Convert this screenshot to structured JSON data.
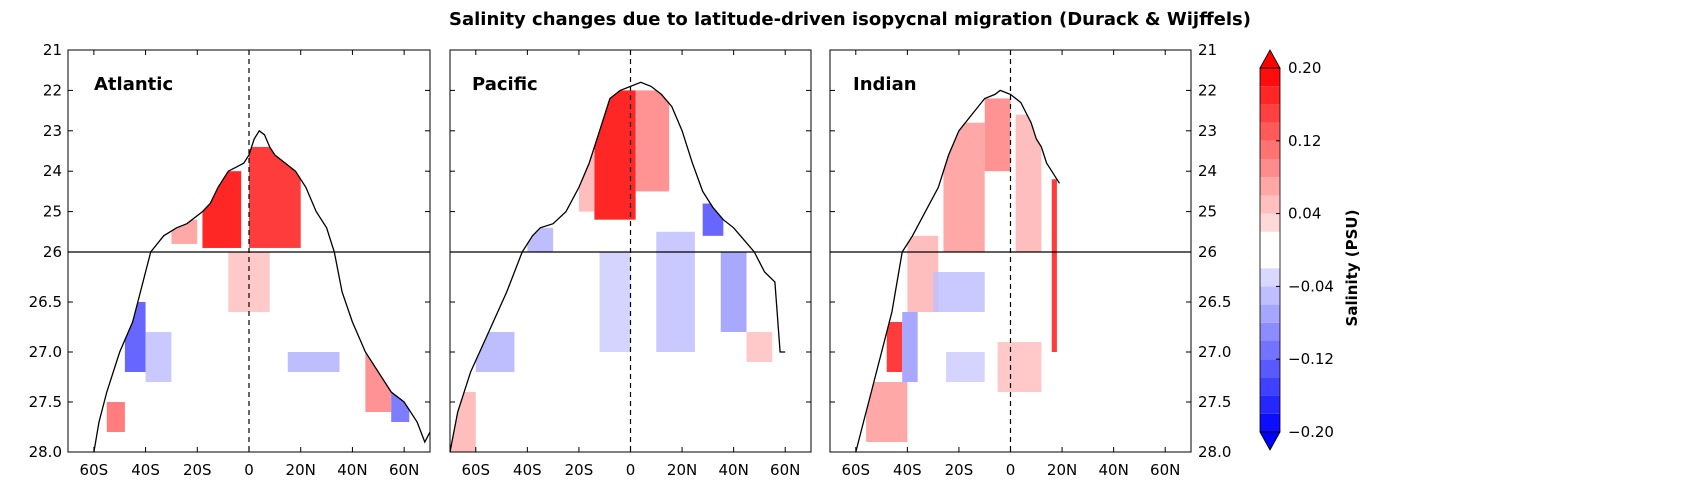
{
  "figure": {
    "title": "Salinity changes due to latitude-driven isopycnal migration (Durack & Wijffels)"
  },
  "chart_data": [
    {
      "type": "heatmap",
      "panel": "Atlantic",
      "x_tick_labels": [
        "60S",
        "40S",
        "20S",
        "0",
        "20N",
        "40N",
        "60N"
      ],
      "x_ticks": [
        -60,
        -40,
        -20,
        0,
        20,
        40,
        60
      ],
      "xlim": [
        -70,
        70
      ],
      "y_tick_labels": [
        "21",
        "22",
        "23",
        "24",
        "25",
        "26",
        "26.5",
        "27.0",
        "27.5",
        "28.0"
      ],
      "y_ticks": [
        21,
        22,
        23,
        24,
        25,
        26,
        26.5,
        27.0,
        27.5,
        28.0
      ],
      "y_axis_note": "density axis, stretched scale below 26",
      "reference_lines": {
        "vertical_dashed_at": 0,
        "horizontal_at": 26
      },
      "surface_outline": [
        [
          -60,
          28.0
        ],
        [
          -58,
          27.7
        ],
        [
          -55,
          27.4
        ],
        [
          -50,
          27.0
        ],
        [
          -45,
          26.7
        ],
        [
          -42,
          26.4
        ],
        [
          -38,
          26.0
        ],
        [
          -33,
          25.6
        ],
        [
          -28,
          25.4
        ],
        [
          -24,
          25.3
        ],
        [
          -18,
          25.0
        ],
        [
          -15,
          24.8
        ],
        [
          -12,
          24.4
        ],
        [
          -8,
          24.0
        ],
        [
          -5,
          23.9
        ],
        [
          -2,
          23.8
        ],
        [
          0,
          23.6
        ],
        [
          2,
          23.2
        ],
        [
          4,
          23.0
        ],
        [
          6,
          23.1
        ],
        [
          8,
          23.4
        ],
        [
          10,
          23.6
        ],
        [
          14,
          23.8
        ],
        [
          18,
          24.0
        ],
        [
          22,
          24.4
        ],
        [
          26,
          25.0
        ],
        [
          30,
          25.4
        ],
        [
          33,
          26.0
        ],
        [
          36,
          26.4
        ],
        [
          40,
          26.7
        ],
        [
          45,
          27.0
        ],
        [
          50,
          27.2
        ],
        [
          55,
          27.4
        ],
        [
          60,
          27.5
        ],
        [
          65,
          27.7
        ],
        [
          68,
          27.9
        ],
        [
          70,
          27.8
        ]
      ],
      "anomaly_patches": [
        {
          "x": [
            -18,
            -3
          ],
          "y": [
            24.0,
            25.9
          ],
          "value": 0.2
        },
        {
          "x": [
            0,
            20
          ],
          "y": [
            23.4,
            25.9
          ],
          "value": 0.18
        },
        {
          "x": [
            -30,
            -20
          ],
          "y": [
            25.2,
            25.8
          ],
          "value": 0.08
        },
        {
          "x": [
            -8,
            8
          ],
          "y": [
            26.0,
            26.6
          ],
          "value": 0.05
        },
        {
          "x": [
            -48,
            -40
          ],
          "y": [
            26.5,
            27.2
          ],
          "value": -0.14
        },
        {
          "x": [
            -40,
            -30
          ],
          "y": [
            26.8,
            27.3
          ],
          "value": -0.05
        },
        {
          "x": [
            15,
            35
          ],
          "y": [
            27.0,
            27.2
          ],
          "value": -0.06
        },
        {
          "x": [
            45,
            55
          ],
          "y": [
            27.0,
            27.6
          ],
          "value": 0.1
        },
        {
          "x": [
            55,
            62
          ],
          "y": [
            27.3,
            27.7
          ],
          "value": -0.12
        },
        {
          "x": [
            -55,
            -48
          ],
          "y": [
            27.5,
            27.8
          ],
          "value": 0.12
        }
      ]
    },
    {
      "type": "heatmap",
      "panel": "Pacific",
      "x_tick_labels": [
        "60S",
        "40S",
        "20S",
        "0",
        "20N",
        "40N",
        "60N"
      ],
      "x_ticks": [
        -60,
        -40,
        -20,
        0,
        20,
        40,
        60
      ],
      "xlim": [
        -70,
        70
      ],
      "y_tick_labels": [],
      "y_ticks": [
        21,
        22,
        23,
        24,
        25,
        26,
        26.5,
        27.0,
        27.5,
        28.0
      ],
      "reference_lines": {
        "vertical_dashed_at": 0,
        "horizontal_at": 26
      },
      "surface_outline": [
        [
          -70,
          28.0
        ],
        [
          -67,
          27.6
        ],
        [
          -62,
          27.2
        ],
        [
          -55,
          26.8
        ],
        [
          -48,
          26.4
        ],
        [
          -42,
          26.0
        ],
        [
          -38,
          25.6
        ],
        [
          -35,
          25.4
        ],
        [
          -30,
          25.3
        ],
        [
          -25,
          25.0
        ],
        [
          -20,
          24.4
        ],
        [
          -16,
          23.8
        ],
        [
          -12,
          23.0
        ],
        [
          -8,
          22.2
        ],
        [
          -4,
          22.0
        ],
        [
          0,
          21.9
        ],
        [
          4,
          21.8
        ],
        [
          8,
          21.9
        ],
        [
          12,
          22.1
        ],
        [
          16,
          22.4
        ],
        [
          20,
          23.0
        ],
        [
          24,
          23.8
        ],
        [
          28,
          24.5
        ],
        [
          32,
          24.9
        ],
        [
          36,
          25.2
        ],
        [
          40,
          25.4
        ],
        [
          44,
          25.7
        ],
        [
          48,
          26.0
        ],
        [
          52,
          26.2
        ],
        [
          56,
          26.3
        ],
        [
          58,
          27.0
        ],
        [
          60,
          27.0
        ]
      ],
      "anomaly_patches": [
        {
          "x": [
            -14,
            2
          ],
          "y": [
            22.0,
            25.2
          ],
          "value": 0.2
        },
        {
          "x": [
            2,
            15
          ],
          "y": [
            22.0,
            24.5
          ],
          "value": 0.1
        },
        {
          "x": [
            -20,
            -14
          ],
          "y": [
            23.5,
            25.0
          ],
          "value": 0.06
        },
        {
          "x": [
            28,
            36
          ],
          "y": [
            24.8,
            25.6
          ],
          "value": -0.14
        },
        {
          "x": [
            -40,
            -30
          ],
          "y": [
            25.4,
            26.0
          ],
          "value": -0.06
        },
        {
          "x": [
            -60,
            -45
          ],
          "y": [
            26.8,
            27.2
          ],
          "value": -0.06
        },
        {
          "x": [
            -12,
            0
          ],
          "y": [
            26.0,
            27.0
          ],
          "value": -0.04
        },
        {
          "x": [
            10,
            25
          ],
          "y": [
            25.5,
            27.0
          ],
          "value": -0.05
        },
        {
          "x": [
            35,
            45
          ],
          "y": [
            26.0,
            26.8
          ],
          "value": -0.08
        },
        {
          "x": [
            45,
            55
          ],
          "y": [
            26.8,
            27.1
          ],
          "value": 0.05
        },
        {
          "x": [
            -70,
            -60
          ],
          "y": [
            27.4,
            28.0
          ],
          "value": 0.06
        }
      ]
    },
    {
      "type": "heatmap",
      "panel": "Indian",
      "x_tick_labels": [
        "60S",
        "40S",
        "20S",
        "0",
        "20N",
        "40N",
        "60N"
      ],
      "x_ticks": [
        -60,
        -40,
        -20,
        0,
        20,
        40,
        60
      ],
      "xlim": [
        -70,
        70
      ],
      "y_tick_labels": [
        "21",
        "22",
        "23",
        "24",
        "25",
        "26",
        "26.5",
        "27.0",
        "27.5",
        "28.0"
      ],
      "y_ticks": [
        21,
        22,
        23,
        24,
        25,
        26,
        26.5,
        27.0,
        27.5,
        28.0
      ],
      "y_tick_side": "right",
      "reference_lines": {
        "vertical_dashed_at": 0,
        "horizontal_at": 26
      },
      "surface_outline": [
        [
          -60,
          28.0
        ],
        [
          -57,
          27.7
        ],
        [
          -54,
          27.4
        ],
        [
          -50,
          27.0
        ],
        [
          -46,
          26.6
        ],
        [
          -42,
          26.0
        ],
        [
          -38,
          25.6
        ],
        [
          -33,
          25.0
        ],
        [
          -28,
          24.4
        ],
        [
          -24,
          23.6
        ],
        [
          -20,
          23.0
        ],
        [
          -15,
          22.6
        ],
        [
          -10,
          22.2
        ],
        [
          -6,
          22.1
        ],
        [
          -4,
          22.0
        ],
        [
          0,
          22.1
        ],
        [
          4,
          22.3
        ],
        [
          8,
          22.8
        ],
        [
          10,
          23.2
        ],
        [
          12,
          23.4
        ],
        [
          14,
          23.8
        ],
        [
          16,
          24.0
        ],
        [
          18,
          24.2
        ],
        [
          19,
          24.3
        ]
      ],
      "anomaly_patches": [
        {
          "x": [
            -26,
            -10
          ],
          "y": [
            22.8,
            26.0
          ],
          "value": 0.08
        },
        {
          "x": [
            -10,
            0
          ],
          "y": [
            22.2,
            24.0
          ],
          "value": 0.1
        },
        {
          "x": [
            2,
            12
          ],
          "y": [
            22.6,
            26.0
          ],
          "value": 0.06
        },
        {
          "x": [
            16,
            18
          ],
          "y": [
            24.2,
            27.0
          ],
          "value": 0.18
        },
        {
          "x": [
            -48,
            -42
          ],
          "y": [
            26.7,
            27.2
          ],
          "value": 0.18
        },
        {
          "x": [
            -42,
            -36
          ],
          "y": [
            26.6,
            27.3
          ],
          "value": -0.08
        },
        {
          "x": [
            -40,
            -28
          ],
          "y": [
            25.6,
            26.6
          ],
          "value": 0.06
        },
        {
          "x": [
            -56,
            -40
          ],
          "y": [
            27.3,
            27.9
          ],
          "value": 0.08
        },
        {
          "x": [
            -5,
            12
          ],
          "y": [
            26.9,
            27.4
          ],
          "value": 0.05
        },
        {
          "x": [
            -30,
            -10
          ],
          "y": [
            26.2,
            26.6
          ],
          "value": -0.05
        },
        {
          "x": [
            -25,
            -10
          ],
          "y": [
            27.0,
            27.3
          ],
          "value": -0.04
        }
      ]
    }
  ],
  "colorbar": {
    "label": "Salinity (PSU)",
    "tick_labels": [
      "0.20",
      "0.12",
      "0.04",
      "−0.04",
      "−0.12",
      "−0.20"
    ],
    "ticks": [
      0.2,
      0.12,
      0.04,
      -0.04,
      -0.12,
      -0.2
    ],
    "levels": [
      -0.2,
      -0.18,
      -0.16,
      -0.14,
      -0.12,
      -0.1,
      -0.08,
      -0.06,
      -0.04,
      -0.02,
      0.02,
      0.04,
      0.06,
      0.08,
      0.1,
      0.12,
      0.14,
      0.16,
      0.18,
      0.2
    ],
    "extend": "both",
    "colormap": "bwr",
    "colors": {
      "min": "#0000ff",
      "mid": "#ffffff",
      "max": "#ff0000"
    }
  }
}
